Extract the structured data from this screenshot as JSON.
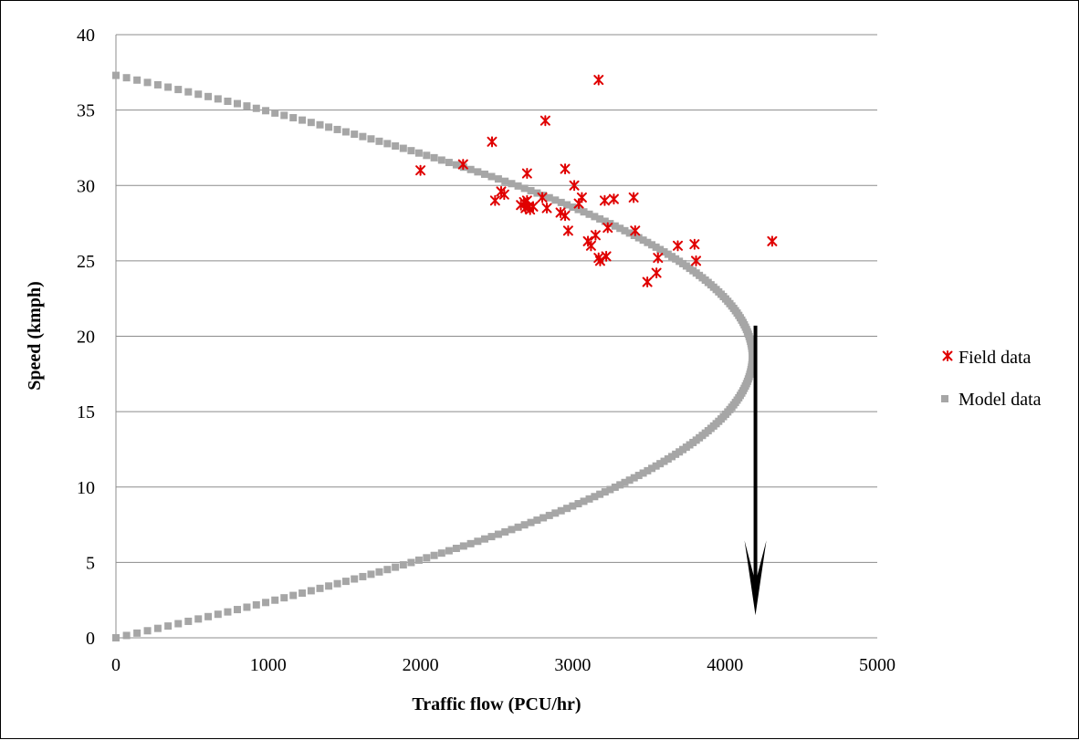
{
  "chart_data": {
    "type": "scatter",
    "title": "",
    "xlabel": "Traffic flow (PCU/hr)",
    "ylabel": "Speed (kmph)",
    "xlim": [
      0,
      5000
    ],
    "ylim": [
      0,
      40
    ],
    "x_ticks": [
      "0",
      "1000",
      "2000",
      "3000",
      "4000",
      "5000"
    ],
    "y_ticks": [
      "0",
      "5",
      "10",
      "15",
      "20",
      "25",
      "30",
      "35",
      "40"
    ],
    "grid": "horizontal",
    "legend_position": "right",
    "series": [
      {
        "name": "Field data",
        "marker": "asterisk",
        "color": "#e00000",
        "points": [
          [
            2000,
            31.0
          ],
          [
            2280,
            31.4
          ],
          [
            2470,
            32.9
          ],
          [
            2490,
            29.0
          ],
          [
            2530,
            29.6
          ],
          [
            2550,
            29.4
          ],
          [
            2660,
            28.7
          ],
          [
            2680,
            28.9
          ],
          [
            2690,
            28.5
          ],
          [
            2700,
            29.0
          ],
          [
            2700,
            30.8
          ],
          [
            2710,
            28.6
          ],
          [
            2720,
            28.4
          ],
          [
            2740,
            28.6
          ],
          [
            2800,
            29.2
          ],
          [
            2820,
            34.3
          ],
          [
            2830,
            28.5
          ],
          [
            2920,
            28.2
          ],
          [
            2950,
            31.1
          ],
          [
            2950,
            28.0
          ],
          [
            2970,
            27.0
          ],
          [
            3010,
            30.0
          ],
          [
            3040,
            28.8
          ],
          [
            3060,
            29.2
          ],
          [
            3100,
            26.3
          ],
          [
            3120,
            26.0
          ],
          [
            3150,
            26.7
          ],
          [
            3170,
            25.2
          ],
          [
            3170,
            37.0
          ],
          [
            3180,
            25.0
          ],
          [
            3210,
            29.0
          ],
          [
            3220,
            25.3
          ],
          [
            3230,
            27.2
          ],
          [
            3270,
            29.1
          ],
          [
            3400,
            29.2
          ],
          [
            3410,
            27.0
          ],
          [
            3490,
            23.6
          ],
          [
            3550,
            24.2
          ],
          [
            3560,
            25.2
          ],
          [
            3690,
            26.0
          ],
          [
            3800,
            26.1
          ],
          [
            3810,
            25.0
          ],
          [
            4310,
            26.3
          ]
        ]
      },
      {
        "name": "Model data",
        "marker": "square",
        "color": "#a6a6a6",
        "model": {
          "free_flow_speed": 37.3,
          "capacity": 4180,
          "speed_min": 0,
          "speed_max": 37.3,
          "count": 240
        }
      }
    ],
    "annotation": {
      "type": "arrow",
      "x": 4200,
      "y_from": 20.7,
      "y_to": 1.5,
      "color": "#000000"
    }
  }
}
